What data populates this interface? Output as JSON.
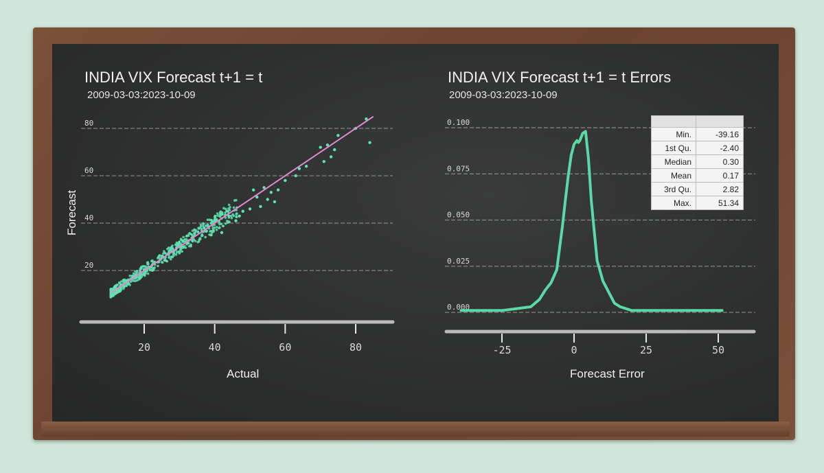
{
  "colors": {
    "points": "#5fe3b0",
    "fit_line": "#e08ad8",
    "density": "#59d9a8",
    "board": "#2e2f2f",
    "chalk": "#e8e8e8"
  },
  "chart_data": [
    {
      "type": "scatter",
      "title": "INDIA VIX Forecast t+1 = t",
      "subtitle": "2009-03-03:2023-10-09",
      "xlabel": "Actual",
      "ylabel": "Forecast",
      "xlim": [
        9,
        86
      ],
      "ylim": [
        9,
        86
      ],
      "x_ticks": [
        20,
        40,
        60,
        80
      ],
      "y_ticks": [
        20,
        40,
        60,
        80
      ],
      "grid": true,
      "fit_line": {
        "from": [
          10.5,
          10.5
        ],
        "to": [
          85,
          85
        ]
      },
      "outliers": [
        [
          37,
          38
        ],
        [
          39,
          35
        ],
        [
          40,
          41
        ],
        [
          42,
          36
        ],
        [
          44,
          43
        ],
        [
          46,
          41
        ],
        [
          48,
          45
        ],
        [
          50,
          46
        ],
        [
          52,
          51
        ],
        [
          53,
          47
        ],
        [
          54,
          55
        ],
        [
          55,
          50
        ],
        [
          56,
          53
        ],
        [
          58,
          54
        ],
        [
          57,
          49
        ],
        [
          51,
          54
        ],
        [
          60,
          58
        ],
        [
          63,
          60
        ],
        [
          66,
          64
        ],
        [
          70,
          72
        ],
        [
          71,
          66
        ],
        [
          72,
          73
        ],
        [
          73,
          68
        ],
        [
          74,
          71
        ],
        [
          75,
          77
        ],
        [
          80,
          80
        ],
        [
          83,
          84
        ],
        [
          84,
          74
        ],
        [
          64,
          63
        ],
        [
          47,
          43
        ]
      ]
    },
    {
      "type": "line",
      "title": "INDIA VIX Forecast t+1 = t Errors",
      "subtitle": "2009-03-03:2023-10-09",
      "xlabel": "Forecast Error",
      "ylabel": "",
      "xlim": [
        -39.16,
        55
      ],
      "ylim": [
        0,
        0.1
      ],
      "x_ticks": [
        -25,
        0,
        25,
        50
      ],
      "y_tick_labels": [
        "0.000",
        "0.025",
        "0.050",
        "0.075",
        "0.100"
      ],
      "grid": true,
      "density": {
        "x": [
          -39.16,
          -30,
          -25,
          -20,
          -15,
          -12,
          -10,
          -8,
          -6,
          -4,
          -3,
          -2,
          -1,
          0,
          1,
          1.5,
          2,
          3,
          4,
          5,
          6,
          8,
          10,
          12,
          14,
          16,
          20,
          25,
          30,
          40,
          51.34
        ],
        "y": [
          0.001,
          0.001,
          0.001,
          0.002,
          0.003,
          0.007,
          0.012,
          0.016,
          0.023,
          0.047,
          0.061,
          0.074,
          0.085,
          0.091,
          0.093,
          0.092,
          0.093,
          0.097,
          0.098,
          0.083,
          0.06,
          0.028,
          0.017,
          0.011,
          0.005,
          0.003,
          0.001,
          0.001,
          0.001,
          0.001,
          0.001
        ]
      },
      "summary": [
        {
          "label": "Min.",
          "value": "-39.16"
        },
        {
          "label": "1st Qu.",
          "value": "-2.40"
        },
        {
          "label": "Median",
          "value": "0.30"
        },
        {
          "label": "Mean",
          "value": "0.17"
        },
        {
          "label": "3rd Qu.",
          "value": "2.82"
        },
        {
          "label": "Max.",
          "value": "51.34"
        }
      ]
    }
  ]
}
